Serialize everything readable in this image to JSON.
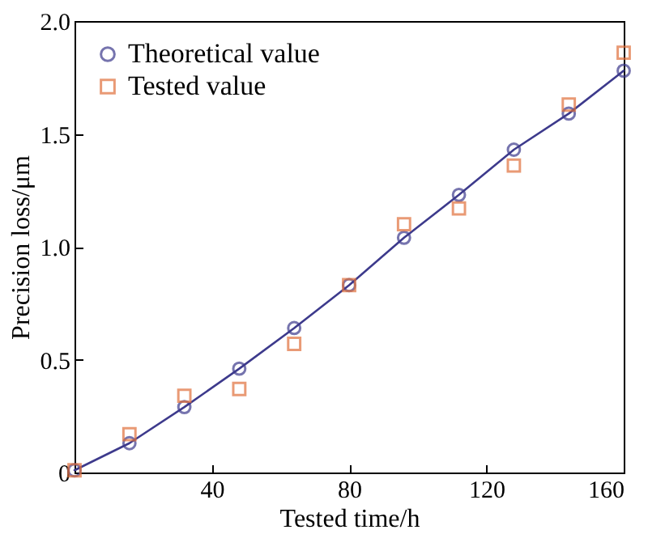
{
  "chart_data": {
    "type": "line",
    "xlabel": "Tested time/h",
    "ylabel": "Precision loss/μm",
    "x": [
      0,
      16,
      32,
      48,
      64,
      80,
      96,
      112,
      128,
      144,
      160
    ],
    "series": [
      {
        "name": "Theoretical value",
        "type": "line",
        "color": "#3d3a8c",
        "marker": "circle",
        "values": [
          0.01,
          0.13,
          0.29,
          0.46,
          0.64,
          0.83,
          1.04,
          1.23,
          1.43,
          1.59,
          1.78
        ]
      },
      {
        "name": "Tested value",
        "type": "scatter",
        "color": "#e0703c",
        "marker": "square",
        "values": [
          0.01,
          0.17,
          0.34,
          0.37,
          0.57,
          0.83,
          1.1,
          1.17,
          1.36,
          1.63,
          1.86
        ]
      }
    ],
    "xlim": [
      0,
      160
    ],
    "xticks": [
      40,
      80,
      120,
      160
    ],
    "ylim": [
      0,
      2.0
    ],
    "yticks": [
      {
        "value": 0,
        "label": "0"
      },
      0.5,
      {
        "value": 1.0,
        "label": "1.0"
      },
      1.5,
      {
        "value": 2.0,
        "label": "2.0"
      }
    ],
    "grid": false,
    "legend": "top left"
  }
}
